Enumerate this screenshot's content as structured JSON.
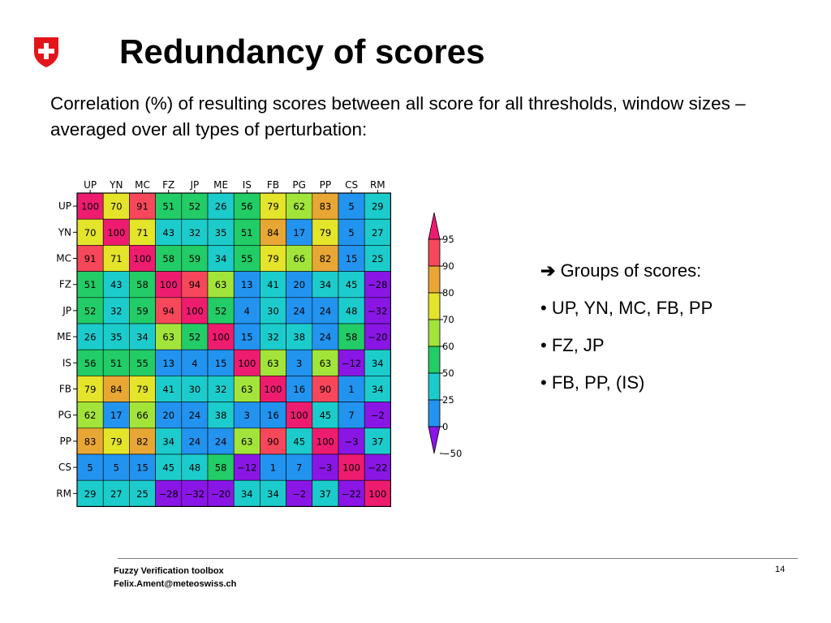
{
  "slide": {
    "title": "Redundancy of scores",
    "subtitle": "Correlation (%) of resulting scores between all score for all thresholds, window sizes – averaged over all types of perturbation:",
    "logo_icon": "swiss-cross-shield-icon",
    "bullets": {
      "arrow_icon": "right-arrow-icon",
      "heading": "Groups of scores:",
      "items": [
        "• UP, YN, MC, FB, PP",
        "• FZ, JP",
        "• FB, PP, (IS)"
      ]
    },
    "footer": {
      "line1": "Fuzzy Verification toolbox",
      "line2": "Felix.Ament@meteoswiss.ch",
      "page": "14"
    }
  },
  "chart_data": {
    "type": "heatmap",
    "x_labels": [
      "UP",
      "YN",
      "MC",
      "FZ",
      "JP",
      "ME",
      "IS",
      "FB",
      "PG",
      "PP",
      "CS",
      "RM"
    ],
    "y_labels": [
      "UP",
      "YN",
      "MC",
      "FZ",
      "JP",
      "ME",
      "IS",
      "FB",
      "PG",
      "PP",
      "CS",
      "RM"
    ],
    "values": [
      [
        100,
        70,
        91,
        51,
        52,
        26,
        56,
        79,
        62,
        83,
        5,
        29
      ],
      [
        70,
        100,
        71,
        43,
        32,
        35,
        51,
        84,
        17,
        79,
        5,
        27
      ],
      [
        91,
        71,
        100,
        58,
        59,
        34,
        55,
        79,
        66,
        82,
        15,
        25
      ],
      [
        51,
        43,
        58,
        100,
        94,
        63,
        13,
        41,
        20,
        34,
        45,
        -28
      ],
      [
        52,
        32,
        59,
        94,
        100,
        52,
        4,
        30,
        24,
        24,
        48,
        -32
      ],
      [
        26,
        35,
        34,
        63,
        52,
        100,
        15,
        32,
        38,
        24,
        58,
        -20
      ],
      [
        56,
        51,
        55,
        13,
        4,
        15,
        100,
        63,
        3,
        63,
        -12,
        34
      ],
      [
        79,
        84,
        79,
        41,
        30,
        32,
        63,
        100,
        16,
        90,
        1,
        34
      ],
      [
        62,
        17,
        66,
        20,
        24,
        38,
        3,
        16,
        100,
        45,
        7,
        -2
      ],
      [
        83,
        79,
        82,
        34,
        24,
        24,
        63,
        90,
        45,
        100,
        -3,
        37
      ],
      [
        5,
        5,
        15,
        45,
        48,
        58,
        -12,
        1,
        7,
        -3,
        100,
        -22
      ],
      [
        29,
        27,
        25,
        -28,
        -32,
        -20,
        34,
        34,
        -2,
        37,
        -22,
        100
      ]
    ],
    "colorbar": {
      "labels": [
        "95",
        "90",
        "80",
        "70",
        "60",
        "50",
        "25",
        "0",
        "−50"
      ],
      "levels": [
        95,
        90,
        80,
        70,
        60,
        50,
        25,
        0,
        -50
      ],
      "colors": [
        "#ee1c6f",
        "#f7475a",
        "#e8a634",
        "#e4e42a",
        "#a3e43a",
        "#22cc66",
        "#1ccccc",
        "#2293ef",
        "#8a16e6"
      ]
    }
  }
}
